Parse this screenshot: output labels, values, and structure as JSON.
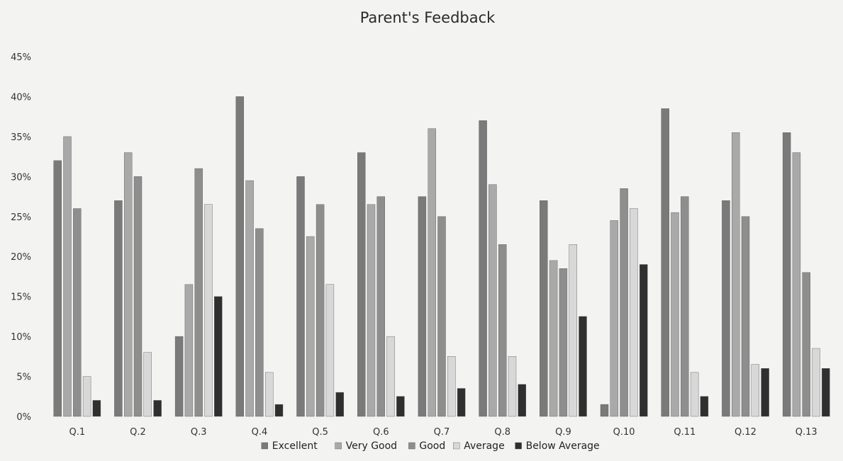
{
  "chart_data": {
    "type": "bar",
    "title": "Parent's Feedback",
    "xlabel": "",
    "ylabel": "",
    "ylim": [
      0,
      45
    ],
    "y_ticks": [
      "0%",
      "5%",
      "10%",
      "15%",
      "20%",
      "25%",
      "30%",
      "35%",
      "40%",
      "45%"
    ],
    "grid": false,
    "legend_position": "bottom",
    "categories": [
      "Q.1",
      "Q.2",
      "Q.3",
      "Q.4",
      "Q.5",
      "Q.6",
      "Q.7",
      "Q.8",
      "Q.9",
      "Q.10",
      "Q.11",
      "Q.12",
      "Q.13"
    ],
    "series": [
      {
        "name": "Excellent",
        "color": "#7a7a7a",
        "values": [
          32,
          27,
          10,
          40,
          30,
          33,
          27.5,
          37,
          27,
          1.5,
          38.5,
          27,
          35.5
        ]
      },
      {
        "name": "Very Good",
        "color": "#a9a9a9",
        "values": [
          35,
          33,
          16.5,
          29.5,
          22.5,
          26.5,
          36,
          29,
          19.5,
          24.5,
          25.5,
          35.5,
          33
        ]
      },
      {
        "name": "Good",
        "color": "#8e8e8e",
        "values": [
          26,
          30,
          31,
          23.5,
          26.5,
          27.5,
          25,
          21.5,
          18.5,
          28.5,
          27.5,
          25,
          18
        ]
      },
      {
        "name": "Average",
        "color": "#d8d8d8",
        "values": [
          5,
          8,
          26.5,
          5.5,
          16.5,
          10,
          7.5,
          7.5,
          21.5,
          26,
          5.5,
          6.5,
          8.5
        ]
      },
      {
        "name": "Below Average",
        "color": "#2f2f2f",
        "values": [
          2,
          2,
          15,
          1.5,
          3,
          2.5,
          3.5,
          4,
          12.5,
          19,
          2.5,
          6,
          6
        ]
      }
    ]
  }
}
